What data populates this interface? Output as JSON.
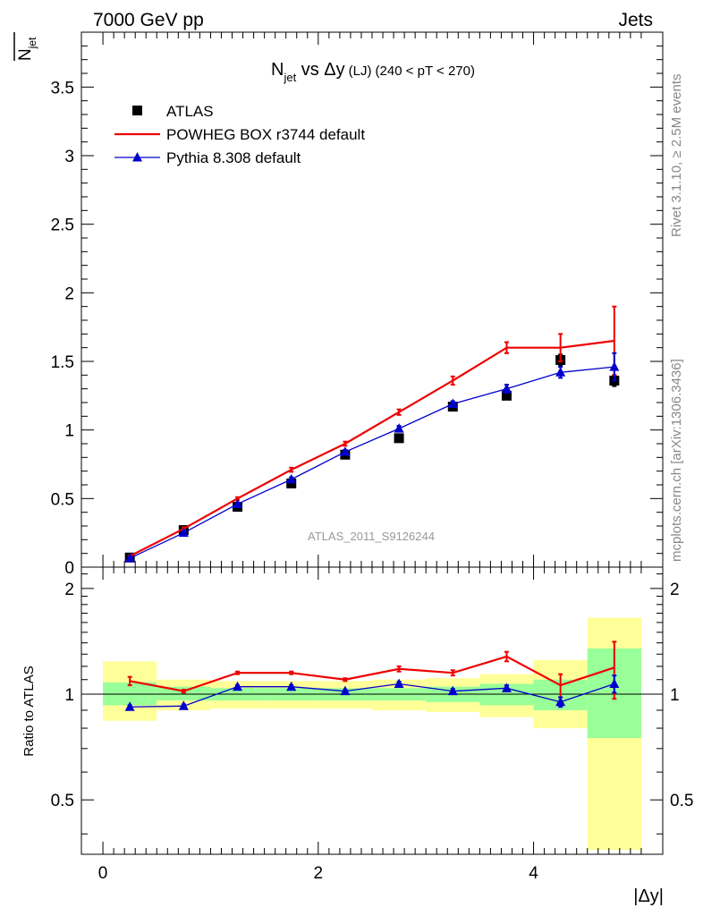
{
  "header": {
    "energy_label": "7000 GeV pp",
    "category_label": "Jets"
  },
  "side_labels": {
    "rivet": "Rivet 3.1.10, ≥ 2.5M events",
    "mcplots": "mcplots.cern.ch [arXiv:1306.3436]"
  },
  "chart_data": [
    {
      "type": "line",
      "title_main": "N",
      "title_sub": "jet",
      "title_rest": " vs Δy",
      "title_qual": "(LJ)",
      "title_cut": "(240 < pT < 270)",
      "ylabel_main": "N",
      "ylabel_sub": "jet",
      "watermark": "ATLAS_2011_S9126244",
      "xlim": [
        -0.2,
        5.2
      ],
      "ylim": [
        0,
        3.9
      ],
      "yticks": [
        0,
        0.5,
        1,
        1.5,
        2,
        2.5,
        3,
        3.5
      ],
      "ytick_labels": [
        "0",
        "0.5",
        "1",
        "1.5",
        "2",
        "2.5",
        "3",
        "3.5"
      ],
      "x": [
        0.25,
        0.75,
        1.25,
        1.75,
        2.25,
        2.75,
        3.25,
        3.75,
        4.25,
        4.75
      ],
      "series": [
        {
          "name": "ATLAS",
          "color": "#000000",
          "marker": "square",
          "values": [
            0.07,
            0.27,
            0.44,
            0.61,
            0.82,
            0.94,
            1.17,
            1.25,
            1.51,
            1.36
          ],
          "errors": [
            0.005,
            0.01,
            0.01,
            0.015,
            0.015,
            0.02,
            0.02,
            0.025,
            0.04,
            0.04
          ]
        },
        {
          "name": "POWHEG BOX r3744 default",
          "color": "#ee0000",
          "marker": "none",
          "values": [
            0.08,
            0.28,
            0.5,
            0.71,
            0.9,
            1.13,
            1.36,
            1.6,
            1.6,
            1.65
          ],
          "errors": [
            0.005,
            0.01,
            0.01,
            0.015,
            0.015,
            0.02,
            0.03,
            0.04,
            0.1,
            0.25
          ]
        },
        {
          "name": "Pythia 8.308 default",
          "color": "#0000cc",
          "marker": "triangle",
          "values": [
            0.065,
            0.25,
            0.46,
            0.64,
            0.84,
            1.01,
            1.19,
            1.3,
            1.42,
            1.46
          ],
          "errors": [
            0.005,
            0.01,
            0.01,
            0.015,
            0.015,
            0.02,
            0.02,
            0.03,
            0.04,
            0.1
          ]
        }
      ]
    },
    {
      "type": "line",
      "ylabel": "Ratio to ATLAS",
      "xlabel": "|Δy|",
      "xlim": [
        -0.2,
        5.2
      ],
      "ylim": [
        0.35,
        2.3
      ],
      "log_y": true,
      "xticks": [
        0,
        2,
        4
      ],
      "xtick_labels": [
        "0",
        "2",
        "4"
      ],
      "yticks": [
        0.5,
        1,
        2
      ],
      "ytick_labels": [
        "0.5",
        "1",
        "2"
      ],
      "bins": [
        [
          0,
          0.5
        ],
        [
          0.5,
          1
        ],
        [
          1,
          1.5
        ],
        [
          1.5,
          2
        ],
        [
          2,
          2.5
        ],
        [
          2.5,
          3
        ],
        [
          3,
          3.5
        ],
        [
          3.5,
          4
        ],
        [
          4,
          4.5
        ],
        [
          4.5,
          5
        ]
      ],
      "band_green": [
        [
          0.93,
          1.08
        ],
        [
          0.96,
          1.05
        ],
        [
          0.96,
          1.04
        ],
        [
          0.96,
          1.04
        ],
        [
          0.96,
          1.04
        ],
        [
          0.96,
          1.04
        ],
        [
          0.95,
          1.05
        ],
        [
          0.93,
          1.07
        ],
        [
          0.9,
          1.1
        ],
        [
          0.75,
          1.35
        ]
      ],
      "band_yellow": [
        [
          0.84,
          1.24
        ],
        [
          0.9,
          1.1
        ],
        [
          0.91,
          1.09
        ],
        [
          0.91,
          1.09
        ],
        [
          0.91,
          1.09
        ],
        [
          0.9,
          1.1
        ],
        [
          0.89,
          1.11
        ],
        [
          0.86,
          1.14
        ],
        [
          0.8,
          1.25
        ],
        [
          0.36,
          1.65
        ]
      ],
      "x": [
        0.25,
        0.75,
        1.25,
        1.75,
        2.25,
        2.75,
        3.25,
        3.75,
        4.25,
        4.75
      ],
      "series": [
        {
          "name": "POWHEG BOX r3744 default",
          "color": "#ee0000",
          "marker": "none",
          "values": [
            1.09,
            1.02,
            1.15,
            1.15,
            1.1,
            1.18,
            1.15,
            1.28,
            1.06,
            1.19
          ],
          "errors": [
            0.03,
            0.01,
            0.01,
            0.01,
            0.01,
            0.02,
            0.02,
            0.04,
            0.08,
            0.22
          ]
        },
        {
          "name": "Pythia 8.308 default",
          "color": "#0000cc",
          "marker": "triangle",
          "values": [
            0.92,
            0.925,
            1.05,
            1.05,
            1.02,
            1.07,
            1.02,
            1.04,
            0.95,
            1.07
          ],
          "errors": [
            0.01,
            0.01,
            0.01,
            0.01,
            0.01,
            0.015,
            0.015,
            0.02,
            0.03,
            0.06
          ]
        }
      ]
    }
  ]
}
